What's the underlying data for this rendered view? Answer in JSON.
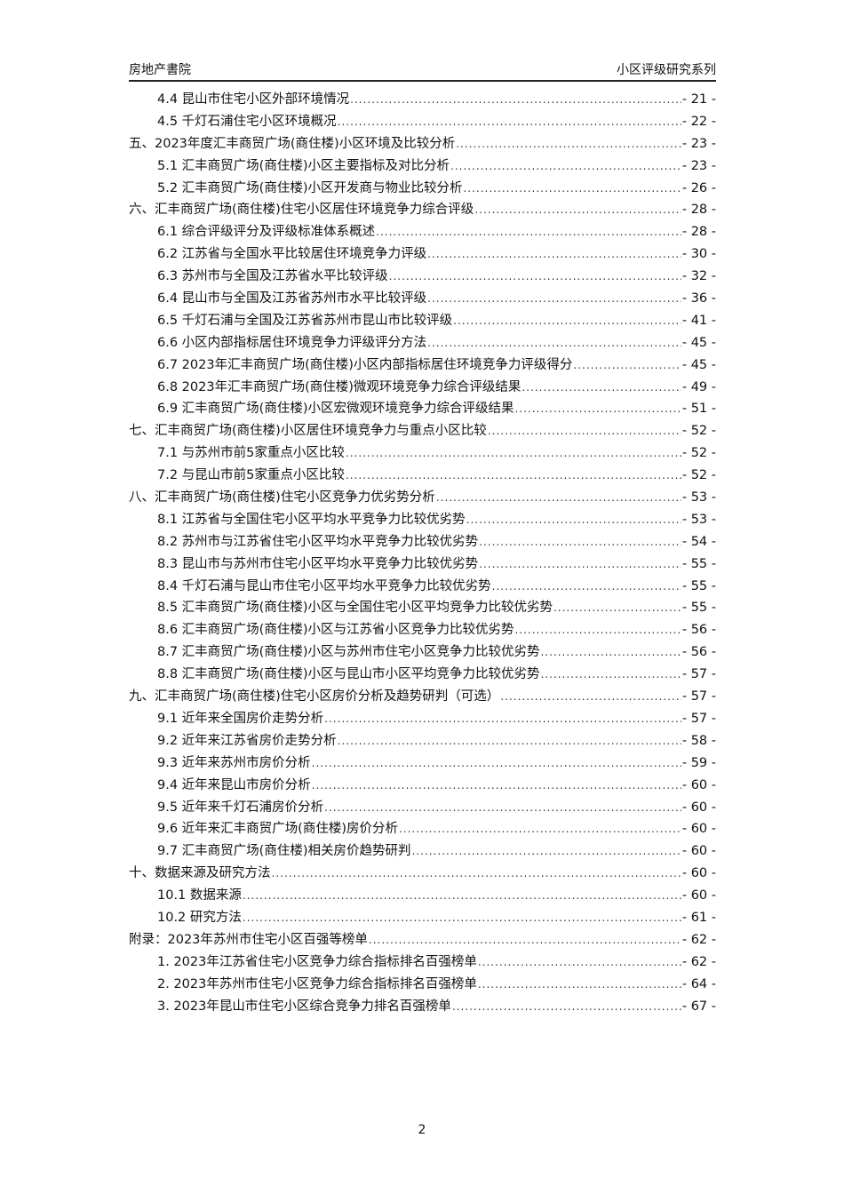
{
  "header": {
    "left": "房地产書院",
    "right": "小区评级研究系列"
  },
  "toc": [
    {
      "level": 2,
      "text": "4.4 昆山市住宅小区外部环境情况",
      "page": "- 21 -"
    },
    {
      "level": 2,
      "text": "4.5 千灯石浦住宅小区环境概况",
      "page": "- 22 -"
    },
    {
      "level": 1,
      "text": "五、2023年度汇丰商贸广场(商住楼)小区环境及比较分析",
      "page": "- 23 -"
    },
    {
      "level": 2,
      "text": "5.1 汇丰商贸广场(商住楼)小区主要指标及对比分析",
      "page": "- 23 -"
    },
    {
      "level": 2,
      "text": "5.2 汇丰商贸广场(商住楼)小区开发商与物业比较分析",
      "page": "- 26 -"
    },
    {
      "level": 1,
      "text": "六、汇丰商贸广场(商住楼)住宅小区居住环境竞争力综合评级",
      "page": "- 28 -"
    },
    {
      "level": 2,
      "text": "6.1 综合评级评分及评级标准体系概述",
      "page": "- 28 -"
    },
    {
      "level": 2,
      "text": "6.2 江苏省与全国水平比较居住环境竞争力评级",
      "page": "- 30 -"
    },
    {
      "level": 2,
      "text": "6.3 苏州市与全国及江苏省水平比较评级",
      "page": "- 32 -"
    },
    {
      "level": 2,
      "text": "6.4 昆山市与全国及江苏省苏州市水平比较评级",
      "page": "- 36 -"
    },
    {
      "level": 2,
      "text": "6.5 千灯石浦与全国及江苏省苏州市昆山市比较评级",
      "page": "- 41 -"
    },
    {
      "level": 2,
      "text": "6.6 小区内部指标居住环境竞争力评级评分方法",
      "page": "- 45 -"
    },
    {
      "level": 2,
      "text": "6.7 2023年汇丰商贸广场(商住楼)小区内部指标居住环境竞争力评级得分",
      "page": "- 45 -"
    },
    {
      "level": 2,
      "text": "6.8 2023年汇丰商贸广场(商住楼)微观环境竞争力综合评级结果",
      "page": "- 49 -"
    },
    {
      "level": 2,
      "text": "6.9 汇丰商贸广场(商住楼)小区宏微观环境竞争力综合评级结果",
      "page": "- 51 -"
    },
    {
      "level": 1,
      "text": "七、汇丰商贸广场(商住楼)小区居住环境竞争力与重点小区比较",
      "page": "- 52 -"
    },
    {
      "level": 2,
      "text": "7.1 与苏州市前5家重点小区比较",
      "page": "- 52 -"
    },
    {
      "level": 2,
      "text": "7.2 与昆山市前5家重点小区比较",
      "page": "- 52 -"
    },
    {
      "level": 1,
      "text": "八、汇丰商贸广场(商住楼)住宅小区竞争力优劣势分析",
      "page": "- 53 -"
    },
    {
      "level": 2,
      "text": "8.1 江苏省与全国住宅小区平均水平竞争力比较优劣势",
      "page": "- 53 -"
    },
    {
      "level": 2,
      "text": "8.2 苏州市与江苏省住宅小区平均水平竞争力比较优劣势",
      "page": "- 54 -"
    },
    {
      "level": 2,
      "text": "8.3 昆山市与苏州市住宅小区平均水平竞争力比较优劣势",
      "page": "- 55 -"
    },
    {
      "level": 2,
      "text": "8.4 千灯石浦与昆山市住宅小区平均水平竞争力比较优劣势",
      "page": "- 55 -"
    },
    {
      "level": 2,
      "text": "8.5 汇丰商贸广场(商住楼)小区与全国住宅小区平均竞争力比较优劣势",
      "page": "- 55 -"
    },
    {
      "level": 2,
      "text": "8.6 汇丰商贸广场(商住楼)小区与江苏省小区竞争力比较优劣势",
      "page": "- 56 -"
    },
    {
      "level": 2,
      "text": "8.7 汇丰商贸广场(商住楼)小区与苏州市住宅小区竞争力比较优劣势",
      "page": "- 56 -"
    },
    {
      "level": 2,
      "text": "8.8 汇丰商贸广场(商住楼)小区与昆山市小区平均竞争力比较优劣势",
      "page": "- 57 -"
    },
    {
      "level": 1,
      "text": "九、汇丰商贸广场(商住楼)住宅小区房价分析及趋势研判（可选）",
      "page": "- 57 -"
    },
    {
      "level": 2,
      "text": "9.1 近年来全国房价走势分析",
      "page": "- 57 -"
    },
    {
      "level": 2,
      "text": "9.2 近年来江苏省房价走势分析",
      "page": "- 58 -"
    },
    {
      "level": 2,
      "text": "9.3 近年来苏州市房价分析",
      "page": "- 59 -"
    },
    {
      "level": 2,
      "text": "9.4 近年来昆山市房价分析",
      "page": "- 60 -"
    },
    {
      "level": 2,
      "text": "9.5 近年来千灯石浦房价分析",
      "page": "- 60 -"
    },
    {
      "level": 2,
      "text": "9.6 近年来汇丰商贸广场(商住楼)房价分析",
      "page": "- 60 -"
    },
    {
      "level": 2,
      "text": "9.7 汇丰商贸广场(商住楼)相关房价趋势研判",
      "page": "- 60 -"
    },
    {
      "level": 1,
      "text": "十、数据来源及研究方法",
      "page": "- 60 -"
    },
    {
      "level": 2,
      "text": "10.1 数据来源",
      "page": "- 60 -"
    },
    {
      "level": 2,
      "text": "10.2 研究方法",
      "page": "- 61 -"
    },
    {
      "level": 1,
      "text": "附录：2023年苏州市住宅小区百强等榜单",
      "page": "- 62 -"
    },
    {
      "level": 2,
      "text": "1. 2023年江苏省住宅小区竞争力综合指标排名百强榜单",
      "page": "- 62 -"
    },
    {
      "level": 2,
      "text": "2. 2023年苏州市住宅小区竞争力综合指标排名百强榜单",
      "page": "- 64 -"
    },
    {
      "level": 2,
      "text": "3. 2023年昆山市住宅小区综合竞争力排名百强榜单",
      "page": "- 67 -"
    }
  ],
  "footer": {
    "page_number": "2"
  }
}
